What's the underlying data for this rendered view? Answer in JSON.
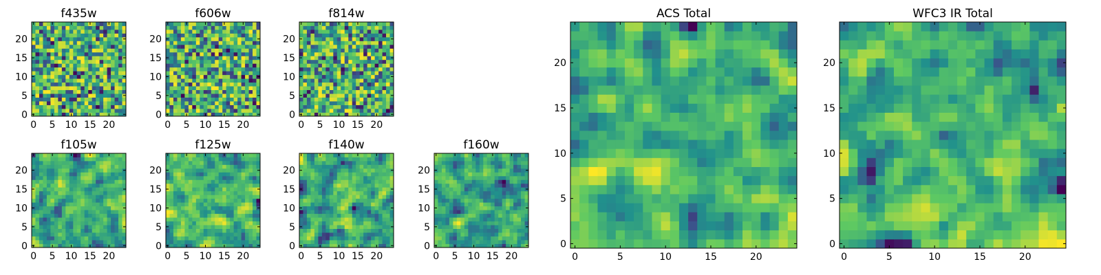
{
  "chart_data": [
    {
      "type": "heatmap",
      "title": "f435w",
      "colormap": "viridis",
      "grid_size": 25,
      "x_tick_labels": [
        "0",
        "5",
        "10",
        "15",
        "20"
      ],
      "y_tick_labels": [
        "0",
        "5",
        "10",
        "15",
        "20"
      ],
      "xlim": [
        -0.5,
        24.5
      ],
      "ylim": [
        -0.5,
        24.5
      ],
      "grid": false,
      "values_note": "random-noise pattern, normalized 0-1",
      "values": null
    },
    {
      "type": "heatmap",
      "title": "f606w",
      "colormap": "viridis",
      "grid_size": 25,
      "x_tick_labels": [
        "0",
        "5",
        "10",
        "15",
        "20"
      ],
      "y_tick_labels": [
        "0",
        "5",
        "10",
        "15",
        "20"
      ],
      "xlim": [
        -0.5,
        24.5
      ],
      "ylim": [
        -0.5,
        24.5
      ],
      "grid": false,
      "values": null
    },
    {
      "type": "heatmap",
      "title": "f814w",
      "colormap": "viridis",
      "grid_size": 25,
      "x_tick_labels": [
        "0",
        "5",
        "10",
        "15",
        "20"
      ],
      "y_tick_labels": [
        "0",
        "5",
        "10",
        "15",
        "20"
      ],
      "xlim": [
        -0.5,
        24.5
      ],
      "ylim": [
        -0.5,
        24.5
      ],
      "grid": false,
      "values": null
    },
    {
      "type": "heatmap",
      "title": "f105w",
      "colormap": "viridis",
      "grid_size": 25,
      "x_tick_labels": [
        "0",
        "5",
        "10",
        "15",
        "20"
      ],
      "y_tick_labels": [
        "0",
        "5",
        "10",
        "15",
        "20"
      ],
      "xlim": [
        -0.5,
        24.5
      ],
      "ylim": [
        -0.5,
        24.5
      ],
      "grid": false,
      "values": null
    },
    {
      "type": "heatmap",
      "title": "f125w",
      "colormap": "viridis",
      "grid_size": 25,
      "x_tick_labels": [
        "0",
        "5",
        "10",
        "15",
        "20"
      ],
      "y_tick_labels": [
        "0",
        "5",
        "10",
        "15",
        "20"
      ],
      "xlim": [
        -0.5,
        24.5
      ],
      "ylim": [
        -0.5,
        24.5
      ],
      "grid": false,
      "values": null
    },
    {
      "type": "heatmap",
      "title": "f140w",
      "colormap": "viridis",
      "grid_size": 25,
      "x_tick_labels": [
        "0",
        "5",
        "10",
        "15",
        "20"
      ],
      "y_tick_labels": [
        "0",
        "5",
        "10",
        "15",
        "20"
      ],
      "xlim": [
        -0.5,
        24.5
      ],
      "ylim": [
        -0.5,
        24.5
      ],
      "grid": false,
      "values": null
    },
    {
      "type": "heatmap",
      "title": "f160w",
      "colormap": "viridis",
      "grid_size": 25,
      "x_tick_labels": [
        "0",
        "5",
        "10",
        "15",
        "20"
      ],
      "y_tick_labels": [
        "0",
        "5",
        "10",
        "15",
        "20"
      ],
      "xlim": [
        -0.5,
        24.5
      ],
      "ylim": [
        -0.5,
        24.5
      ],
      "grid": false,
      "values": null
    },
    {
      "type": "heatmap",
      "title": "ACS Total",
      "colormap": "viridis",
      "grid_size": 25,
      "x_tick_labels": [
        "0",
        "5",
        "10",
        "15",
        "20"
      ],
      "y_tick_labels": [
        "0",
        "5",
        "10",
        "15",
        "20"
      ],
      "xlim": [
        -0.5,
        24.5
      ],
      "ylim": [
        -0.5,
        24.5
      ],
      "grid": false,
      "values": null
    },
    {
      "type": "heatmap",
      "title": "WFC3 IR Total",
      "colormap": "viridis",
      "grid_size": 25,
      "x_tick_labels": [
        "0",
        "5",
        "10",
        "15",
        "20"
      ],
      "y_tick_labels": [
        "0",
        "5",
        "10",
        "15",
        "20"
      ],
      "xlim": [
        -0.5,
        24.5
      ],
      "ylim": [
        -0.5,
        24.5
      ],
      "grid": false,
      "values": null
    }
  ],
  "colors": {
    "viridis_stops": [
      "#440154",
      "#3b528b",
      "#21918c",
      "#5ec962",
      "#fde725"
    ],
    "frame": "#000000",
    "background": "#ffffff"
  }
}
